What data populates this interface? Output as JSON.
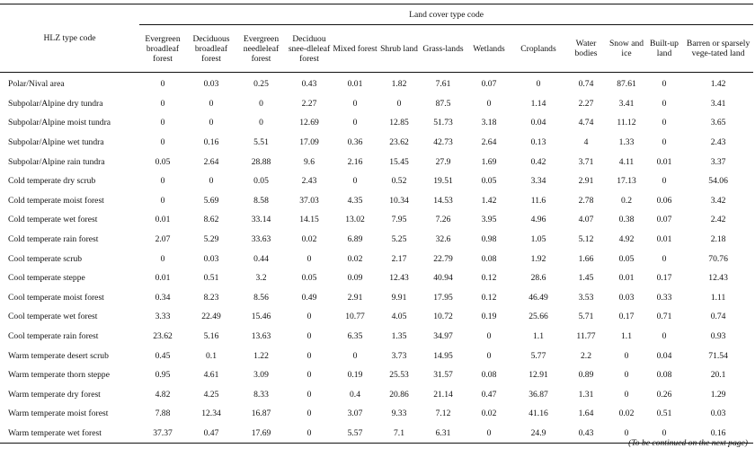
{
  "table": {
    "hlz_header": "HLZ type code",
    "group_header": "Land cover type code",
    "columns": [
      "Evergreen broadleaf forest",
      "Deciduous broadleaf forest",
      "Evergreen needleleaf forest",
      "Deciduou snee-dleleaf forest",
      "Mixed forest",
      "Shrub land",
      "Grass-lands",
      "Wetlands",
      "Croplands",
      "Water bodies",
      "Snow and ice",
      "Built-up land",
      "Barren or sparsely vege-tated land"
    ],
    "rows": [
      {
        "name": "Polar/Nival area",
        "values": [
          "0",
          "0.03",
          "0.25",
          "0.43",
          "0.01",
          "1.82",
          "7.61",
          "0.07",
          "0",
          "0.74",
          "87.61",
          "0",
          "1.42"
        ]
      },
      {
        "name": "Subpolar/Alpine dry tundra",
        "values": [
          "0",
          "0",
          "0",
          "2.27",
          "0",
          "0",
          "87.5",
          "0",
          "1.14",
          "2.27",
          "3.41",
          "0",
          "3.41"
        ]
      },
      {
        "name": "Subpolar/Alpine moist tundra",
        "values": [
          "0",
          "0",
          "0",
          "12.69",
          "0",
          "12.85",
          "51.73",
          "3.18",
          "0.04",
          "4.74",
          "11.12",
          "0",
          "3.65"
        ]
      },
      {
        "name": "Subpolar/Alpine wet tundra",
        "values": [
          "0",
          "0.16",
          "5.51",
          "17.09",
          "0.36",
          "23.62",
          "42.73",
          "2.64",
          "0.13",
          "4",
          "1.33",
          "0",
          "2.43"
        ]
      },
      {
        "name": "Subpolar/Alpine rain tundra",
        "values": [
          "0.05",
          "2.64",
          "28.88",
          "9.6",
          "2.16",
          "15.45",
          "27.9",
          "1.69",
          "0.42",
          "3.71",
          "4.11",
          "0.01",
          "3.37"
        ]
      },
      {
        "name": "Cold temperate dry scrub",
        "values": [
          "0",
          "0",
          "0.05",
          "2.43",
          "0",
          "0.52",
          "19.51",
          "0.05",
          "3.34",
          "2.91",
          "17.13",
          "0",
          "54.06"
        ]
      },
      {
        "name": "Cold temperate moist forest",
        "values": [
          "0",
          "5.69",
          "8.58",
          "37.03",
          "4.35",
          "10.34",
          "14.53",
          "1.42",
          "11.6",
          "2.78",
          "0.2",
          "0.06",
          "3.42"
        ]
      },
      {
        "name": "Cold temperate wet forest",
        "values": [
          "0.01",
          "8.62",
          "33.14",
          "14.15",
          "13.02",
          "7.95",
          "7.26",
          "3.95",
          "4.96",
          "4.07",
          "0.38",
          "0.07",
          "2.42"
        ]
      },
      {
        "name": "Cold temperate rain forest",
        "values": [
          "2.07",
          "5.29",
          "33.63",
          "0.02",
          "6.89",
          "5.25",
          "32.6",
          "0.98",
          "1.05",
          "5.12",
          "4.92",
          "0.01",
          "2.18"
        ]
      },
      {
        "name": "Cool temperate scrub",
        "values": [
          "0",
          "0.03",
          "0.44",
          "0",
          "0.02",
          "2.17",
          "22.79",
          "0.08",
          "1.92",
          "1.66",
          "0.05",
          "0",
          "70.76"
        ]
      },
      {
        "name": "Cool temperate steppe",
        "values": [
          "0.01",
          "0.51",
          "3.2",
          "0.05",
          "0.09",
          "12.43",
          "40.94",
          "0.12",
          "28.6",
          "1.45",
          "0.01",
          "0.17",
          "12.43"
        ]
      },
      {
        "name": "Cool temperate moist forest",
        "values": [
          "0.34",
          "8.23",
          "8.56",
          "0.49",
          "2.91",
          "9.91",
          "17.95",
          "0.12",
          "46.49",
          "3.53",
          "0.03",
          "0.33",
          "1.11"
        ]
      },
      {
        "name": "Cool temperate wet forest",
        "values": [
          "3.33",
          "22.49",
          "15.46",
          "0",
          "10.77",
          "4.05",
          "10.72",
          "0.19",
          "25.66",
          "5.71",
          "0.17",
          "0.71",
          "0.74"
        ]
      },
      {
        "name": "Cool temperate rain forest",
        "values": [
          "23.62",
          "5.16",
          "13.63",
          "0",
          "6.35",
          "1.35",
          "34.97",
          "0",
          "1.1",
          "11.77",
          "1.1",
          "0",
          "0.93"
        ]
      },
      {
        "name": "Warm temperate desert scrub",
        "values": [
          "0.45",
          "0.1",
          "1.22",
          "0",
          "0",
          "3.73",
          "14.95",
          "0",
          "5.77",
          "2.2",
          "0",
          "0.04",
          "71.54"
        ]
      },
      {
        "name": "Warm temperate thorn steppe",
        "values": [
          "0.95",
          "4.61",
          "3.09",
          "0",
          "0.19",
          "25.53",
          "31.57",
          "0.08",
          "12.91",
          "0.89",
          "0",
          "0.08",
          "20.1"
        ]
      },
      {
        "name": "Warm temperate dry forest",
        "values": [
          "4.82",
          "4.25",
          "8.33",
          "0",
          "0.4",
          "20.86",
          "21.14",
          "0.47",
          "36.87",
          "1.31",
          "0",
          "0.26",
          "1.29"
        ]
      },
      {
        "name": "Warm temperate moist forest",
        "values": [
          "7.88",
          "12.34",
          "16.87",
          "0",
          "3.07",
          "9.33",
          "7.12",
          "0.02",
          "41.16",
          "1.64",
          "0.02",
          "0.51",
          "0.03"
        ]
      },
      {
        "name": "Warm temperate wet forest",
        "values": [
          "37.37",
          "0.47",
          "17.69",
          "0",
          "5.57",
          "7.1",
          "6.31",
          "0",
          "24.9",
          "0.43",
          "0",
          "0",
          "0.16"
        ]
      }
    ]
  },
  "footer": {
    "continued": "(To be continued on the next page)"
  }
}
